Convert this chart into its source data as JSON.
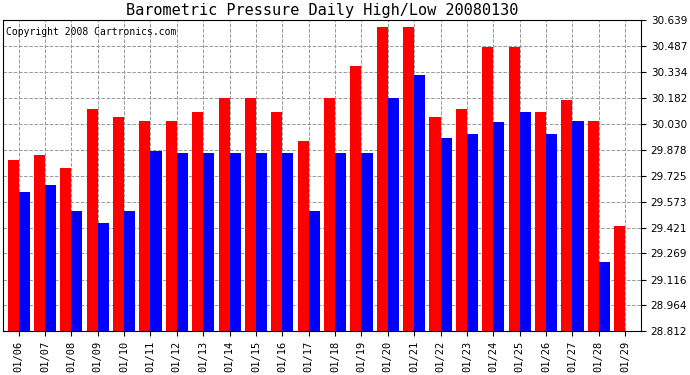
{
  "title": "Barometric Pressure Daily High/Low 20080130",
  "copyright": "Copyright 2008 Cartronics.com",
  "dates": [
    "01/06",
    "01/07",
    "01/08",
    "01/09",
    "01/10",
    "01/11",
    "01/12",
    "01/13",
    "01/14",
    "01/15",
    "01/16",
    "01/17",
    "01/18",
    "01/19",
    "01/20",
    "01/21",
    "01/22",
    "01/23",
    "01/24",
    "01/25",
    "01/26",
    "01/27",
    "01/28",
    "01/29"
  ],
  "highs": [
    29.82,
    29.85,
    29.77,
    30.12,
    30.07,
    30.05,
    30.05,
    30.1,
    30.18,
    30.18,
    30.1,
    29.93,
    30.18,
    30.37,
    30.6,
    30.6,
    30.07,
    30.12,
    30.48,
    30.48,
    30.1,
    30.17,
    30.05,
    29.43
  ],
  "lows": [
    29.63,
    29.67,
    29.52,
    29.45,
    29.52,
    29.87,
    29.86,
    29.86,
    29.86,
    29.86,
    29.86,
    29.52,
    29.86,
    29.86,
    30.18,
    30.32,
    29.95,
    29.97,
    30.04,
    30.1,
    29.97,
    30.05,
    29.22,
    28.81
  ],
  "high_color": "#ff0000",
  "low_color": "#0000ff",
  "bg_color": "#ffffff",
  "grid_color": "#999999",
  "ymin": 28.812,
  "ymax": 30.639,
  "yticks": [
    28.812,
    28.964,
    29.116,
    29.269,
    29.421,
    29.573,
    29.725,
    29.878,
    30.03,
    30.182,
    30.334,
    30.487,
    30.639
  ],
  "title_fontsize": 11,
  "tick_fontsize": 7.5,
  "copyright_fontsize": 7
}
